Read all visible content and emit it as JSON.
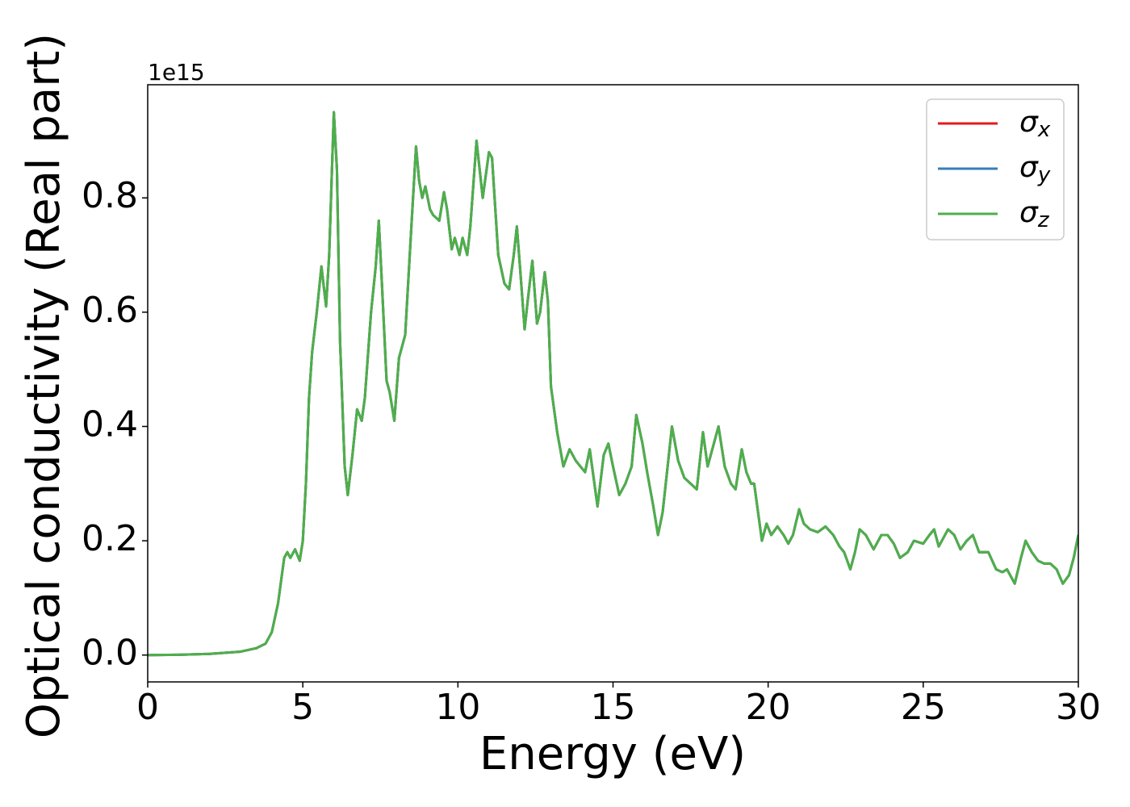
{
  "chart_data": {
    "type": "line",
    "xlabel": "Energy (eV)",
    "ylabel": "Optical conductivity (Real part)",
    "y_offset_label": "1e15",
    "xlim": [
      0,
      30
    ],
    "xticks": [
      0,
      5,
      10,
      15,
      20,
      25,
      30
    ],
    "ylim": [
      -0.047,
      0.998
    ],
    "yticks": [
      0.0,
      0.2,
      0.4,
      0.6,
      0.8
    ],
    "yticks_labels_fmt": null,
    "legend": "upper right",
    "grid": false,
    "x": [
      0,
      1,
      2,
      3,
      3.5,
      3.8,
      4,
      4.2,
      4.4,
      4.5,
      4.6,
      4.75,
      4.9,
      5,
      5.1,
      5.2,
      5.3,
      5.45,
      5.6,
      5.75,
      5.85,
      6,
      6.1,
      6.2,
      6.35,
      6.45,
      6.6,
      6.75,
      6.9,
      7,
      7.2,
      7.35,
      7.45,
      7.55,
      7.7,
      7.8,
      7.95,
      8.1,
      8.3,
      8.5,
      8.65,
      8.75,
      8.85,
      8.95,
      9.1,
      9.2,
      9.4,
      9.55,
      9.65,
      9.8,
      9.9,
      10.05,
      10.15,
      10.3,
      10.4,
      10.6,
      10.8,
      11,
      11.1,
      11.3,
      11.5,
      11.65,
      11.8,
      11.9,
      12,
      12.15,
      12.25,
      12.4,
      12.55,
      12.65,
      12.8,
      12.9,
      13,
      13.2,
      13.4,
      13.6,
      13.8,
      13.95,
      14.1,
      14.25,
      14.5,
      14.7,
      14.85,
      15,
      15.2,
      15.4,
      15.6,
      15.75,
      15.95,
      16.1,
      16.3,
      16.45,
      16.6,
      16.8,
      16.9,
      17.1,
      17.3,
      17.5,
      17.7,
      17.9,
      18.05,
      18.2,
      18.4,
      18.6,
      18.8,
      18.95,
      19.15,
      19.3,
      19.45,
      19.55,
      19.7,
      19.8,
      19.95,
      20.1,
      20.3,
      20.5,
      20.65,
      20.8,
      21,
      21.15,
      21.35,
      21.6,
      21.85,
      22.1,
      22.3,
      22.45,
      22.65,
      22.8,
      22.95,
      23.15,
      23.4,
      23.65,
      23.85,
      24.05,
      24.25,
      24.5,
      24.7,
      25,
      25.2,
      25.35,
      25.5,
      25.8,
      26,
      26.2,
      26.4,
      26.6,
      26.8,
      27.1,
      27.35,
      27.55,
      27.7,
      27.95,
      28.15,
      28.3,
      28.5,
      28.7,
      28.9,
      29.1,
      29.3,
      29.5,
      29.7,
      29.85,
      30
    ],
    "series": [
      {
        "name": "σx",
        "color": "#e41a1c",
        "values": [
          0,
          0.0005,
          0.002,
          0.006,
          0.012,
          0.02,
          0.04,
          0.09,
          0.17,
          0.18,
          0.17,
          0.185,
          0.165,
          0.2,
          0.3,
          0.45,
          0.53,
          0.6,
          0.68,
          0.61,
          0.7,
          0.95,
          0.85,
          0.55,
          0.33,
          0.28,
          0.35,
          0.43,
          0.41,
          0.45,
          0.6,
          0.68,
          0.76,
          0.65,
          0.48,
          0.46,
          0.41,
          0.52,
          0.56,
          0.75,
          0.89,
          0.83,
          0.8,
          0.82,
          0.78,
          0.77,
          0.76,
          0.81,
          0.78,
          0.71,
          0.73,
          0.7,
          0.73,
          0.7,
          0.75,
          0.9,
          0.8,
          0.88,
          0.87,
          0.7,
          0.65,
          0.64,
          0.7,
          0.75,
          0.68,
          0.57,
          0.62,
          0.69,
          0.58,
          0.6,
          0.67,
          0.62,
          0.47,
          0.39,
          0.33,
          0.36,
          0.34,
          0.33,
          0.32,
          0.36,
          0.26,
          0.35,
          0.37,
          0.33,
          0.28,
          0.3,
          0.33,
          0.42,
          0.37,
          0.32,
          0.26,
          0.21,
          0.25,
          0.35,
          0.4,
          0.34,
          0.31,
          0.3,
          0.29,
          0.39,
          0.33,
          0.36,
          0.4,
          0.33,
          0.3,
          0.29,
          0.36,
          0.32,
          0.3,
          0.3,
          0.24,
          0.2,
          0.23,
          0.21,
          0.225,
          0.21,
          0.195,
          0.21,
          0.255,
          0.23,
          0.22,
          0.215,
          0.225,
          0.21,
          0.19,
          0.18,
          0.15,
          0.18,
          0.22,
          0.21,
          0.185,
          0.21,
          0.21,
          0.195,
          0.17,
          0.18,
          0.2,
          0.195,
          0.21,
          0.22,
          0.19,
          0.22,
          0.21,
          0.185,
          0.2,
          0.21,
          0.18,
          0.18,
          0.15,
          0.145,
          0.15,
          0.125,
          0.17,
          0.2,
          0.18,
          0.165,
          0.16,
          0.16,
          0.15,
          0.125,
          0.14,
          0.17,
          0.21
        ]
      },
      {
        "name": "σy",
        "color": "#377eb8",
        "values": [
          0,
          0.0005,
          0.002,
          0.006,
          0.012,
          0.02,
          0.04,
          0.09,
          0.17,
          0.18,
          0.17,
          0.185,
          0.165,
          0.2,
          0.3,
          0.45,
          0.53,
          0.6,
          0.68,
          0.61,
          0.7,
          0.95,
          0.85,
          0.55,
          0.33,
          0.28,
          0.35,
          0.43,
          0.41,
          0.45,
          0.6,
          0.68,
          0.76,
          0.65,
          0.48,
          0.46,
          0.41,
          0.52,
          0.56,
          0.75,
          0.89,
          0.83,
          0.8,
          0.82,
          0.78,
          0.77,
          0.76,
          0.81,
          0.78,
          0.71,
          0.73,
          0.7,
          0.73,
          0.7,
          0.75,
          0.9,
          0.8,
          0.88,
          0.87,
          0.7,
          0.65,
          0.64,
          0.7,
          0.75,
          0.68,
          0.57,
          0.62,
          0.69,
          0.58,
          0.6,
          0.67,
          0.62,
          0.47,
          0.39,
          0.33,
          0.36,
          0.34,
          0.33,
          0.32,
          0.36,
          0.26,
          0.35,
          0.37,
          0.33,
          0.28,
          0.3,
          0.33,
          0.42,
          0.37,
          0.32,
          0.26,
          0.21,
          0.25,
          0.35,
          0.4,
          0.34,
          0.31,
          0.3,
          0.29,
          0.39,
          0.33,
          0.36,
          0.4,
          0.33,
          0.3,
          0.29,
          0.36,
          0.32,
          0.3,
          0.3,
          0.24,
          0.2,
          0.23,
          0.21,
          0.225,
          0.21,
          0.195,
          0.21,
          0.255,
          0.23,
          0.22,
          0.215,
          0.225,
          0.21,
          0.19,
          0.18,
          0.15,
          0.18,
          0.22,
          0.21,
          0.185,
          0.21,
          0.21,
          0.195,
          0.17,
          0.18,
          0.2,
          0.195,
          0.21,
          0.22,
          0.19,
          0.22,
          0.21,
          0.185,
          0.2,
          0.21,
          0.18,
          0.18,
          0.15,
          0.145,
          0.15,
          0.125,
          0.17,
          0.2,
          0.18,
          0.165,
          0.16,
          0.16,
          0.15,
          0.125,
          0.14,
          0.17,
          0.21
        ]
      },
      {
        "name": "σz",
        "color": "#4daf4a",
        "values": [
          0,
          0.0005,
          0.002,
          0.006,
          0.012,
          0.02,
          0.04,
          0.09,
          0.17,
          0.18,
          0.17,
          0.185,
          0.165,
          0.2,
          0.3,
          0.45,
          0.53,
          0.6,
          0.68,
          0.61,
          0.7,
          0.95,
          0.85,
          0.55,
          0.33,
          0.28,
          0.35,
          0.43,
          0.41,
          0.45,
          0.6,
          0.68,
          0.76,
          0.65,
          0.48,
          0.46,
          0.41,
          0.52,
          0.56,
          0.75,
          0.89,
          0.83,
          0.8,
          0.82,
          0.78,
          0.77,
          0.76,
          0.81,
          0.78,
          0.71,
          0.73,
          0.7,
          0.73,
          0.7,
          0.75,
          0.9,
          0.8,
          0.88,
          0.87,
          0.7,
          0.65,
          0.64,
          0.7,
          0.75,
          0.68,
          0.57,
          0.62,
          0.69,
          0.58,
          0.6,
          0.67,
          0.62,
          0.47,
          0.39,
          0.33,
          0.36,
          0.34,
          0.33,
          0.32,
          0.36,
          0.26,
          0.35,
          0.37,
          0.33,
          0.28,
          0.3,
          0.33,
          0.42,
          0.37,
          0.32,
          0.26,
          0.21,
          0.25,
          0.35,
          0.4,
          0.34,
          0.31,
          0.3,
          0.29,
          0.39,
          0.33,
          0.36,
          0.4,
          0.33,
          0.3,
          0.29,
          0.36,
          0.32,
          0.3,
          0.3,
          0.24,
          0.2,
          0.23,
          0.21,
          0.225,
          0.21,
          0.195,
          0.21,
          0.255,
          0.23,
          0.22,
          0.215,
          0.225,
          0.21,
          0.19,
          0.18,
          0.15,
          0.18,
          0.22,
          0.21,
          0.185,
          0.21,
          0.21,
          0.195,
          0.17,
          0.18,
          0.2,
          0.195,
          0.21,
          0.22,
          0.19,
          0.22,
          0.21,
          0.185,
          0.2,
          0.21,
          0.18,
          0.18,
          0.15,
          0.145,
          0.15,
          0.125,
          0.17,
          0.2,
          0.18,
          0.165,
          0.16,
          0.16,
          0.15,
          0.125,
          0.14,
          0.17,
          0.21
        ]
      }
    ]
  }
}
